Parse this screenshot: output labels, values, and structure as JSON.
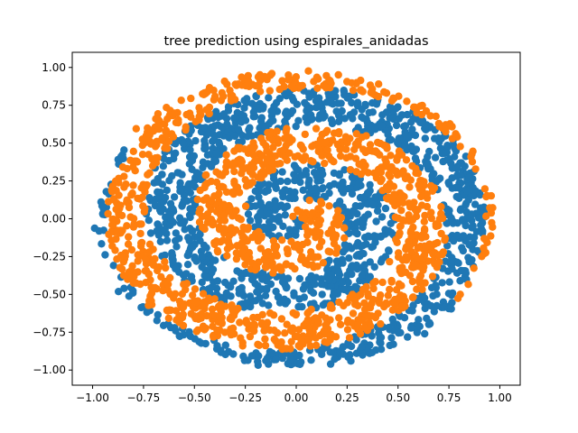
{
  "chart_data": {
    "type": "scatter",
    "title": "tree prediction using espirales_anidadas",
    "xlabel": "",
    "ylabel": "",
    "xlim": [
      -1.1,
      1.1
    ],
    "ylim": [
      -1.1,
      1.1
    ],
    "xticks": [
      -1.0,
      -0.75,
      -0.5,
      -0.25,
      0.0,
      0.25,
      0.5,
      0.75,
      1.0
    ],
    "yticks": [
      -1.0,
      -0.75,
      -0.5,
      -0.25,
      0.0,
      0.25,
      0.5,
      0.75,
      1.0
    ],
    "xtick_labels": [
      "−1.00",
      "−0.75",
      "−0.50",
      "−0.25",
      "0.00",
      "0.25",
      "0.50",
      "0.75",
      "1.00"
    ],
    "ytick_labels": [
      "−1.00",
      "−0.75",
      "−0.50",
      "−0.25",
      "0.00",
      "0.25",
      "0.50",
      "0.75",
      "1.00"
    ],
    "grid": false,
    "legend": "none",
    "data_extent": {
      "radius_min": 0.0,
      "radius_max": 1.0,
      "shape": "disk centered at (0, 0)"
    },
    "series": [
      {
        "color": "#1f77b4",
        "pattern": "outer ring and interleaved spiral arm (class 0)"
      },
      {
        "color": "#ff7f0e",
        "pattern": "spiral arm winding inward to the center (class 1)"
      }
    ]
  }
}
